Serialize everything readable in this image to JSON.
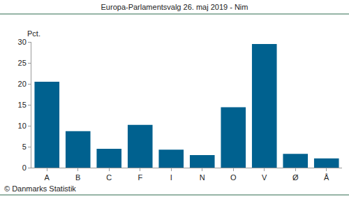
{
  "chart_data": {
    "type": "bar",
    "title": "Europa-Parlamentsvalg 26. maj 2019 - Nim",
    "ylabel": "Pct.",
    "source": "© Danmarks Statistik",
    "categories": [
      "A",
      "B",
      "C",
      "F",
      "I",
      "N",
      "O",
      "V",
      "Ø",
      "Å"
    ],
    "values": [
      20.5,
      8.7,
      4.5,
      10.2,
      4.3,
      3.0,
      14.4,
      29.5,
      3.3,
      2.2
    ],
    "color": "#00618f",
    "ylim": [
      0,
      30
    ],
    "yticks": [
      0,
      5,
      10,
      15,
      20,
      25,
      30
    ],
    "grid": false
  }
}
